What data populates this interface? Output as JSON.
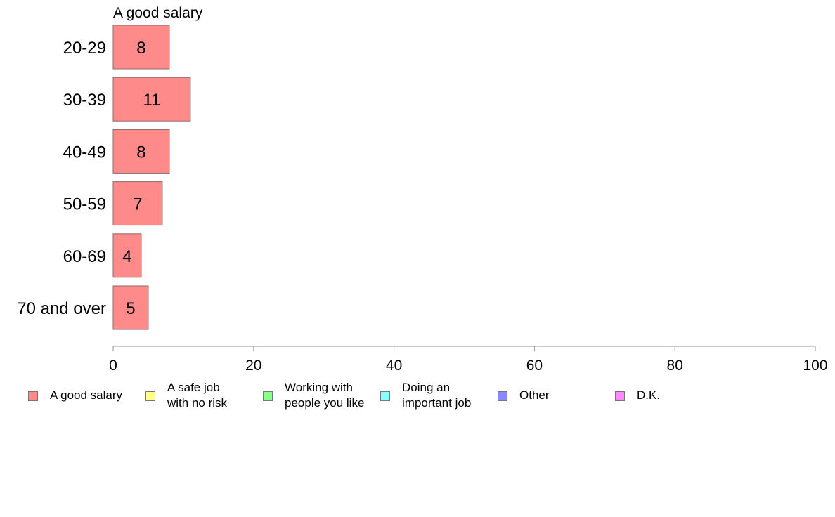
{
  "chart_data": {
    "type": "bar",
    "orientation": "horizontal",
    "title": "A good salary",
    "categories": [
      "20-29",
      "30-39",
      "40-49",
      "50-59",
      "60-69",
      "70 and over"
    ],
    "series": [
      {
        "name": "A good salary",
        "values": [
          8,
          11,
          8,
          7,
          4,
          5
        ],
        "color": "#ff8a8a"
      }
    ],
    "value_labels": [
      "8",
      "11",
      "8",
      "7",
      "4",
      "5"
    ],
    "xlim": [
      0,
      100
    ],
    "xticks": [
      0,
      20,
      40,
      60,
      80,
      100
    ],
    "xtick_labels": [
      "0",
      "20",
      "40",
      "60",
      "80",
      "100"
    ],
    "grid": false,
    "legend_placement": "bottom",
    "legend": [
      {
        "label": "A good salary",
        "color": "#ff8a8a"
      },
      {
        "label": "A safe job\nwith no risk",
        "color": "#ffff8a"
      },
      {
        "label": "Working with\npeople you like",
        "color": "#8aff8a"
      },
      {
        "label": "Doing an\nimportant job",
        "color": "#8affff"
      },
      {
        "label": "Other",
        "color": "#8a8aff"
      },
      {
        "label": "D.K.",
        "color": "#ff8aff"
      }
    ]
  }
}
